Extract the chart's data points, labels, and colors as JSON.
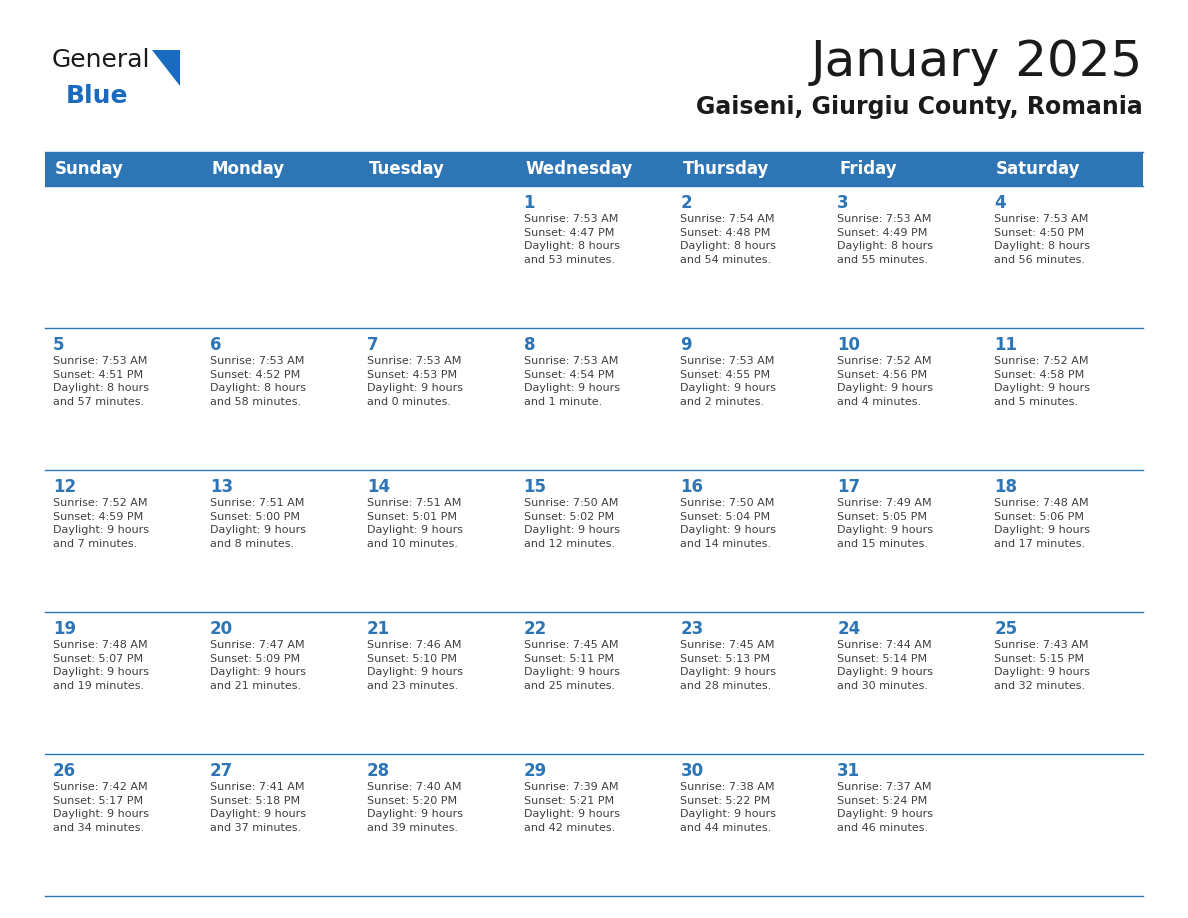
{
  "title": "January 2025",
  "subtitle": "Gaiseni, Giurgiu County, Romania",
  "header_bg": "#2e75b6",
  "header_text_color": "#ffffff",
  "cell_bg": "#ffffff",
  "day_number_color": "#2e75b6",
  "text_color": "#404040",
  "line_color": "#2e75b6",
  "days_of_week": [
    "Sunday",
    "Monday",
    "Tuesday",
    "Wednesday",
    "Thursday",
    "Friday",
    "Saturday"
  ],
  "weeks": [
    [
      {
        "day": "",
        "info": ""
      },
      {
        "day": "",
        "info": ""
      },
      {
        "day": "",
        "info": ""
      },
      {
        "day": "1",
        "info": "Sunrise: 7:53 AM\nSunset: 4:47 PM\nDaylight: 8 hours\nand 53 minutes."
      },
      {
        "day": "2",
        "info": "Sunrise: 7:54 AM\nSunset: 4:48 PM\nDaylight: 8 hours\nand 54 minutes."
      },
      {
        "day": "3",
        "info": "Sunrise: 7:53 AM\nSunset: 4:49 PM\nDaylight: 8 hours\nand 55 minutes."
      },
      {
        "day": "4",
        "info": "Sunrise: 7:53 AM\nSunset: 4:50 PM\nDaylight: 8 hours\nand 56 minutes."
      }
    ],
    [
      {
        "day": "5",
        "info": "Sunrise: 7:53 AM\nSunset: 4:51 PM\nDaylight: 8 hours\nand 57 minutes."
      },
      {
        "day": "6",
        "info": "Sunrise: 7:53 AM\nSunset: 4:52 PM\nDaylight: 8 hours\nand 58 minutes."
      },
      {
        "day": "7",
        "info": "Sunrise: 7:53 AM\nSunset: 4:53 PM\nDaylight: 9 hours\nand 0 minutes."
      },
      {
        "day": "8",
        "info": "Sunrise: 7:53 AM\nSunset: 4:54 PM\nDaylight: 9 hours\nand 1 minute."
      },
      {
        "day": "9",
        "info": "Sunrise: 7:53 AM\nSunset: 4:55 PM\nDaylight: 9 hours\nand 2 minutes."
      },
      {
        "day": "10",
        "info": "Sunrise: 7:52 AM\nSunset: 4:56 PM\nDaylight: 9 hours\nand 4 minutes."
      },
      {
        "day": "11",
        "info": "Sunrise: 7:52 AM\nSunset: 4:58 PM\nDaylight: 9 hours\nand 5 minutes."
      }
    ],
    [
      {
        "day": "12",
        "info": "Sunrise: 7:52 AM\nSunset: 4:59 PM\nDaylight: 9 hours\nand 7 minutes."
      },
      {
        "day": "13",
        "info": "Sunrise: 7:51 AM\nSunset: 5:00 PM\nDaylight: 9 hours\nand 8 minutes."
      },
      {
        "day": "14",
        "info": "Sunrise: 7:51 AM\nSunset: 5:01 PM\nDaylight: 9 hours\nand 10 minutes."
      },
      {
        "day": "15",
        "info": "Sunrise: 7:50 AM\nSunset: 5:02 PM\nDaylight: 9 hours\nand 12 minutes."
      },
      {
        "day": "16",
        "info": "Sunrise: 7:50 AM\nSunset: 5:04 PM\nDaylight: 9 hours\nand 14 minutes."
      },
      {
        "day": "17",
        "info": "Sunrise: 7:49 AM\nSunset: 5:05 PM\nDaylight: 9 hours\nand 15 minutes."
      },
      {
        "day": "18",
        "info": "Sunrise: 7:48 AM\nSunset: 5:06 PM\nDaylight: 9 hours\nand 17 minutes."
      }
    ],
    [
      {
        "day": "19",
        "info": "Sunrise: 7:48 AM\nSunset: 5:07 PM\nDaylight: 9 hours\nand 19 minutes."
      },
      {
        "day": "20",
        "info": "Sunrise: 7:47 AM\nSunset: 5:09 PM\nDaylight: 9 hours\nand 21 minutes."
      },
      {
        "day": "21",
        "info": "Sunrise: 7:46 AM\nSunset: 5:10 PM\nDaylight: 9 hours\nand 23 minutes."
      },
      {
        "day": "22",
        "info": "Sunrise: 7:45 AM\nSunset: 5:11 PM\nDaylight: 9 hours\nand 25 minutes."
      },
      {
        "day": "23",
        "info": "Sunrise: 7:45 AM\nSunset: 5:13 PM\nDaylight: 9 hours\nand 28 minutes."
      },
      {
        "day": "24",
        "info": "Sunrise: 7:44 AM\nSunset: 5:14 PM\nDaylight: 9 hours\nand 30 minutes."
      },
      {
        "day": "25",
        "info": "Sunrise: 7:43 AM\nSunset: 5:15 PM\nDaylight: 9 hours\nand 32 minutes."
      }
    ],
    [
      {
        "day": "26",
        "info": "Sunrise: 7:42 AM\nSunset: 5:17 PM\nDaylight: 9 hours\nand 34 minutes."
      },
      {
        "day": "27",
        "info": "Sunrise: 7:41 AM\nSunset: 5:18 PM\nDaylight: 9 hours\nand 37 minutes."
      },
      {
        "day": "28",
        "info": "Sunrise: 7:40 AM\nSunset: 5:20 PM\nDaylight: 9 hours\nand 39 minutes."
      },
      {
        "day": "29",
        "info": "Sunrise: 7:39 AM\nSunset: 5:21 PM\nDaylight: 9 hours\nand 42 minutes."
      },
      {
        "day": "30",
        "info": "Sunrise: 7:38 AM\nSunset: 5:22 PM\nDaylight: 9 hours\nand 44 minutes."
      },
      {
        "day": "31",
        "info": "Sunrise: 7:37 AM\nSunset: 5:24 PM\nDaylight: 9 hours\nand 46 minutes."
      },
      {
        "day": "",
        "info": ""
      }
    ]
  ],
  "logo_color_general": "#1a1a1a",
  "logo_color_blue": "#1a6bbf",
  "logo_triangle_color": "#1a6bbf",
  "title_fontsize": 36,
  "subtitle_fontsize": 17,
  "header_fontsize": 12,
  "day_num_fontsize": 12,
  "info_fontsize": 8
}
